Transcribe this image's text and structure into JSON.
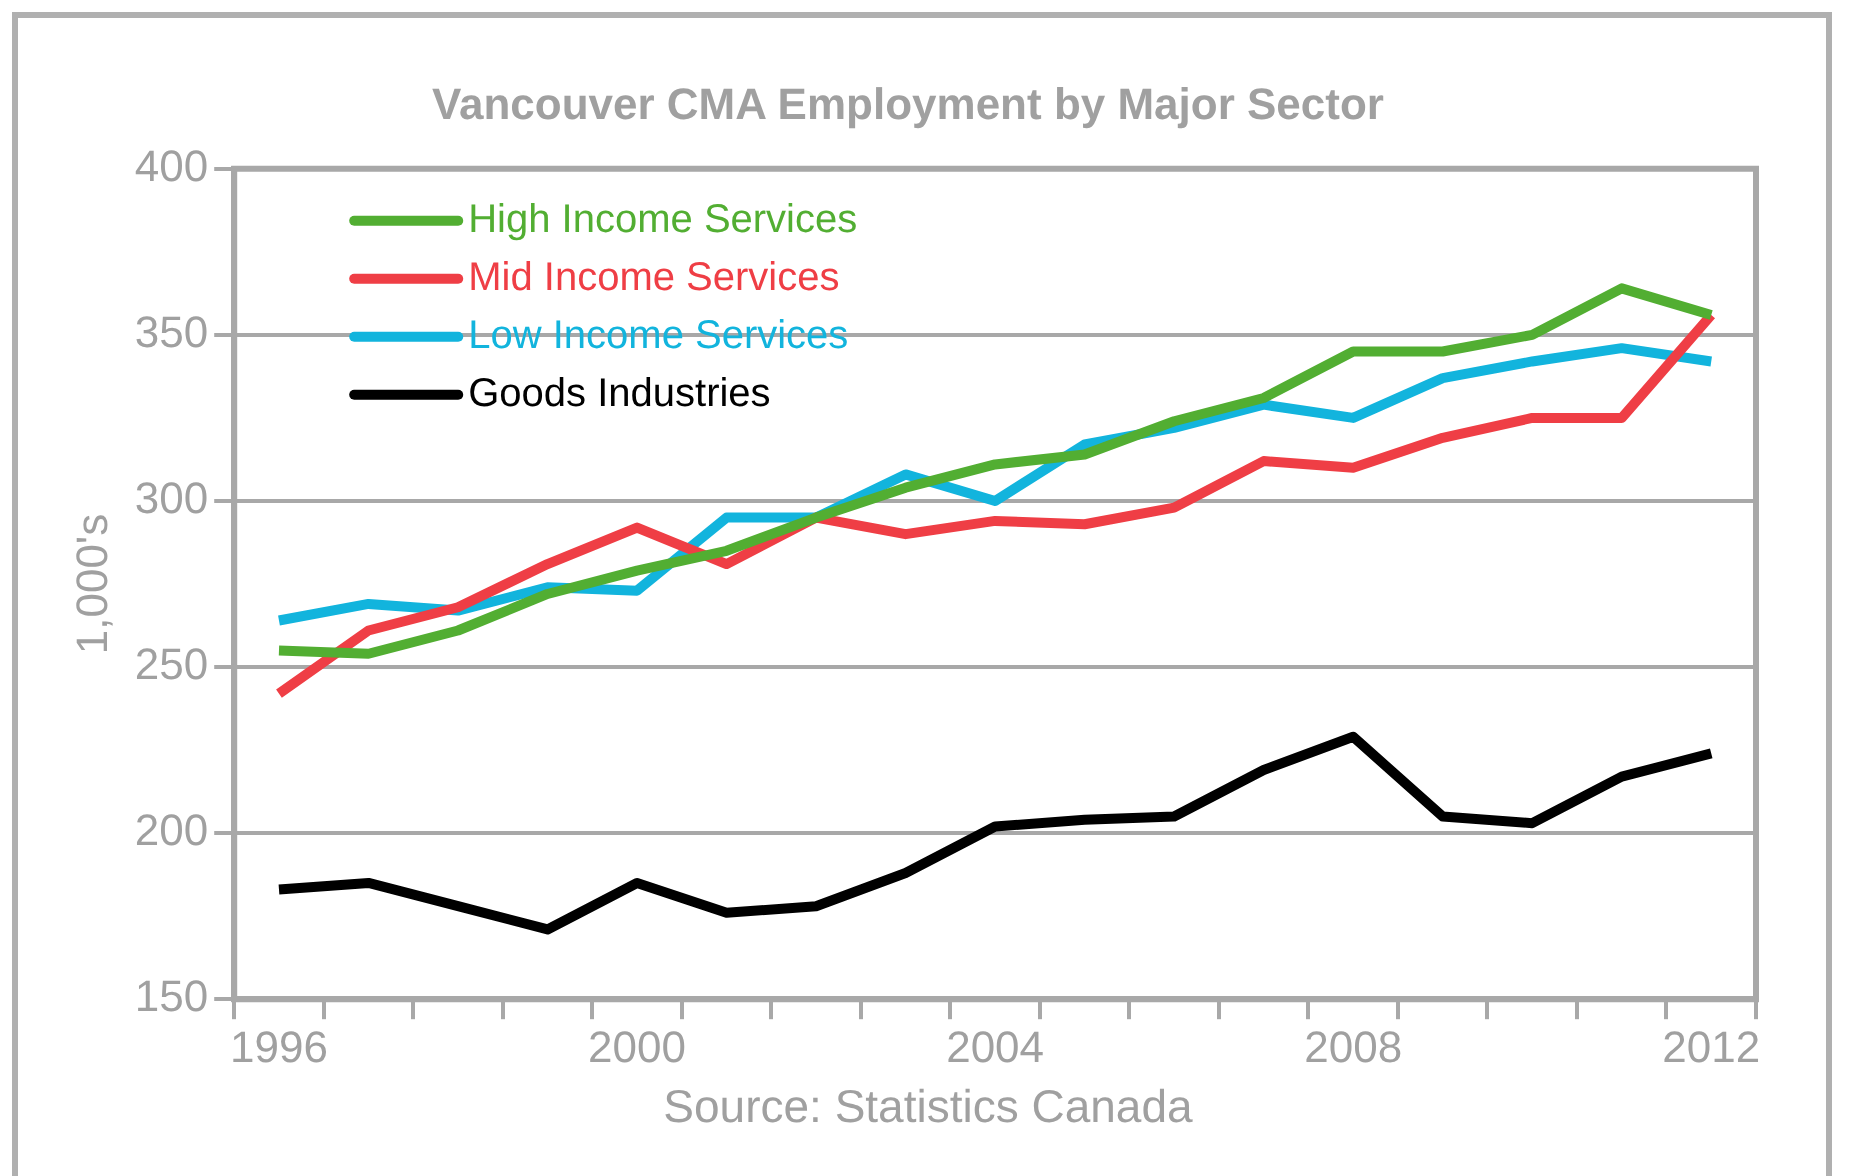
{
  "chart_data": {
    "type": "line",
    "title": "Vancouver CMA Employment by Major Sector",
    "ylabel": "1,000's",
    "categories": [
      "1996",
      null,
      null,
      null,
      "2000",
      null,
      null,
      null,
      "2004",
      null,
      null,
      null,
      "2008",
      null,
      null,
      null,
      "2012"
    ],
    "series": [
      {
        "name": "High Income Services",
        "color": "#52ae32",
        "values": [
          255,
          254,
          261,
          272,
          279,
          285,
          295,
          304,
          311,
          314,
          324,
          331,
          345,
          345,
          350,
          364,
          356
        ]
      },
      {
        "name": "Mid Income Services",
        "color": "#ef3e45",
        "values": [
          242,
          261,
          268,
          281,
          292,
          281,
          295,
          290,
          294,
          293,
          298,
          312,
          310,
          319,
          325,
          325,
          356
        ]
      },
      {
        "name": "Low Income Services",
        "color": "#12b4dd",
        "values": [
          264,
          269,
          267,
          274,
          273,
          295,
          295,
          308,
          300,
          317,
          322,
          329,
          325,
          337,
          342,
          346,
          342
        ]
      },
      {
        "name": "Goods Industries",
        "color": "#000000",
        "values": [
          183,
          185,
          178,
          171,
          185,
          176,
          178,
          188,
          202,
          204,
          205,
          219,
          229,
          205,
          203,
          217,
          224
        ]
      }
    ],
    "ylim": [
      150,
      400
    ],
    "yticks": [
      150,
      200,
      250,
      300,
      350,
      400
    ],
    "grid": "y",
    "legend": "top left",
    "marker": "none",
    "line_style": "solid",
    "annotations": [
      "Source:  Statistics Canada"
    ]
  }
}
